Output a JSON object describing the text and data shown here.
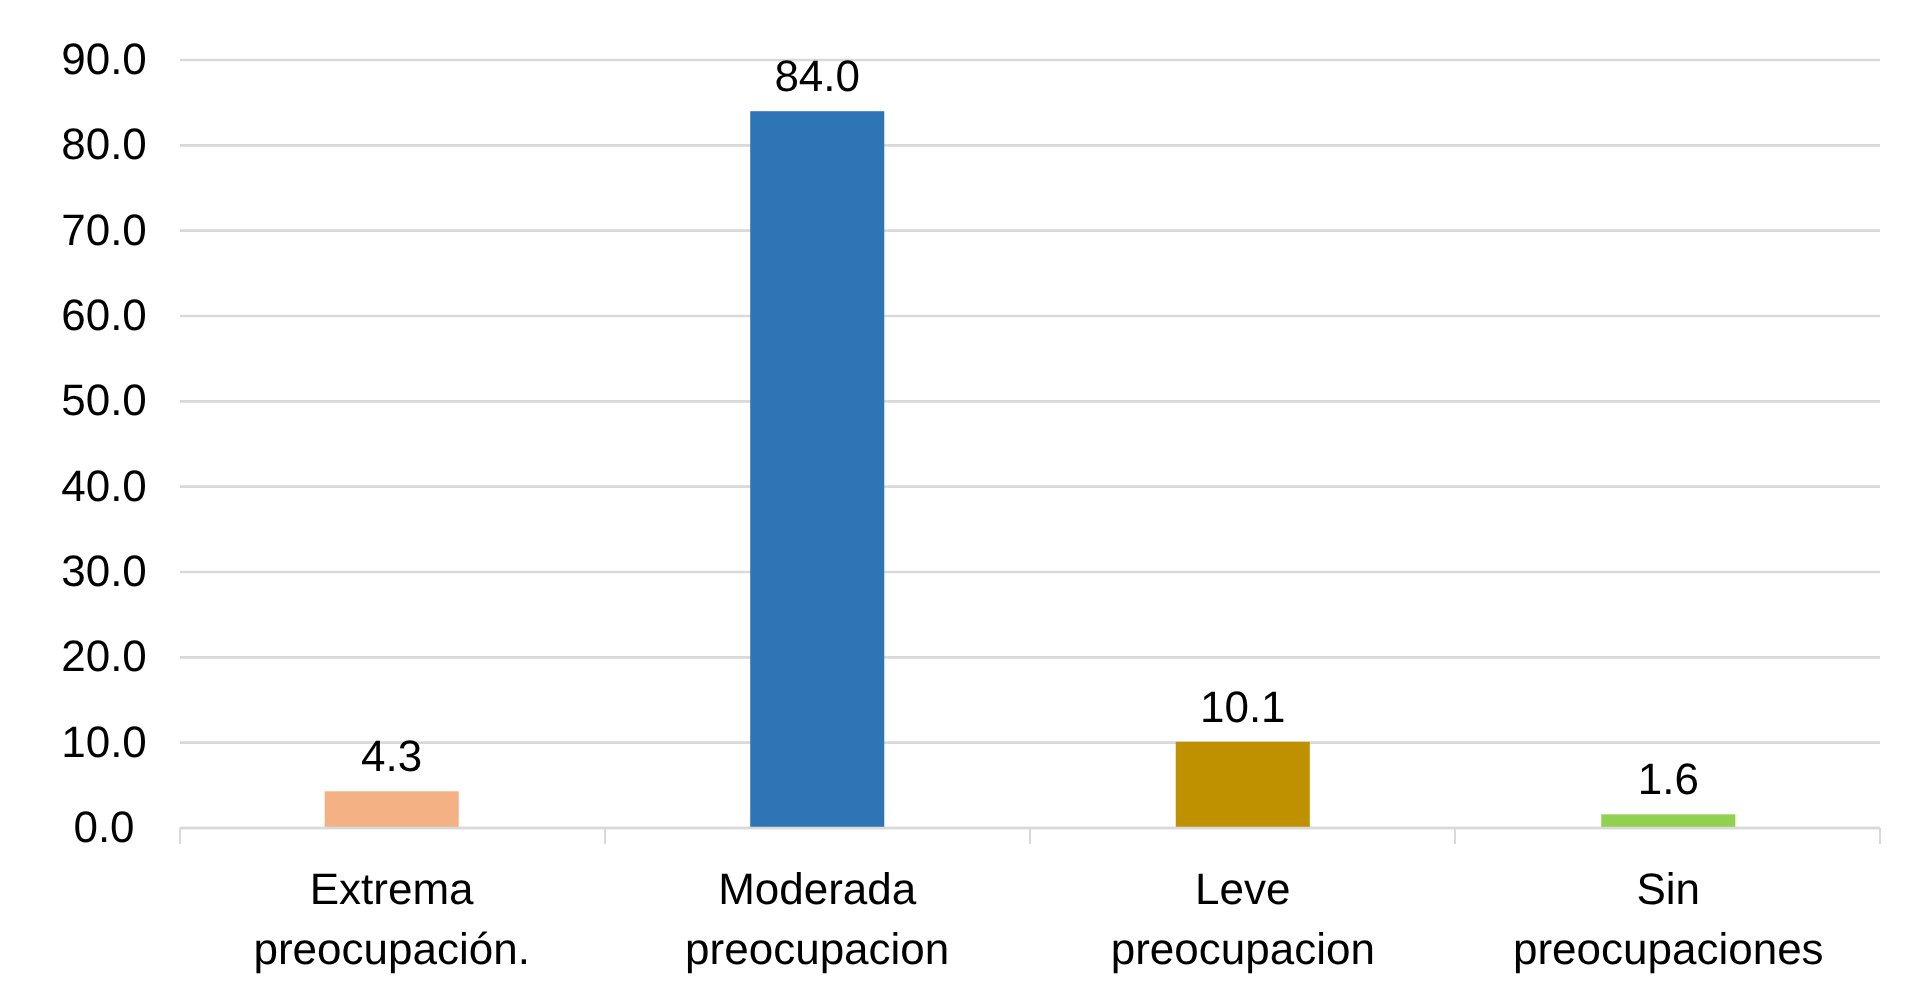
{
  "chart_data": {
    "type": "bar",
    "categories": [
      "Extrema preocupación.",
      "Moderada preocupacion",
      "Leve preocupacion",
      "Sin preocupaciones"
    ],
    "values": [
      4.3,
      84.0,
      10.1,
      1.6
    ],
    "colors": [
      "#f4b183",
      "#2e75b6",
      "#bf9000",
      "#92d050"
    ],
    "value_labels": [
      "4.3",
      "84.0",
      "10.1",
      "1.6"
    ],
    "ylim": [
      0,
      90
    ],
    "yticks": [
      {
        "value": 0,
        "label": "0.0"
      },
      {
        "value": 10,
        "label": "10.0"
      },
      {
        "value": 20,
        "label": "20.0"
      },
      {
        "value": 30,
        "label": "30.0"
      },
      {
        "value": 40,
        "label": "40.0"
      },
      {
        "value": 50,
        "label": "50.0"
      },
      {
        "value": 60,
        "label": "60.0"
      },
      {
        "value": 70,
        "label": "70.0"
      },
      {
        "value": 80,
        "label": "80.0"
      },
      {
        "value": 90,
        "label": "90.0"
      }
    ],
    "grid": "y"
  }
}
